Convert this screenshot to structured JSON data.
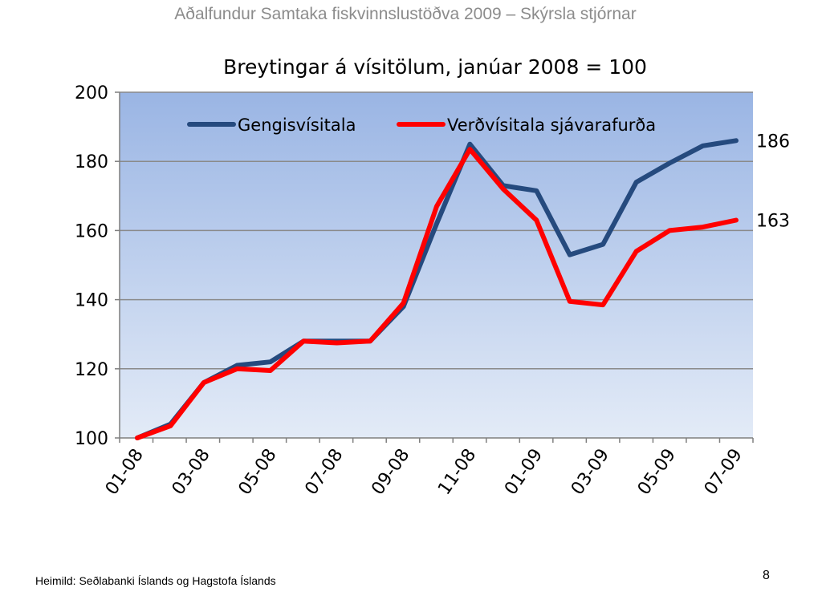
{
  "slide": {
    "header": "Aðalfundur Samtaka fiskvinnslustöðva 2009 – Skýrsla stjórnar",
    "source": "Heimild: Seðlabanki Íslands og  Hagstofa Íslands",
    "page_number": "8"
  },
  "chart_data": {
    "type": "line",
    "title": "Breytingar á vísitölum,  janúar 2008 = 100",
    "xlabel": "",
    "ylabel": "",
    "ylim": [
      100,
      200
    ],
    "yticks": [
      100,
      120,
      140,
      160,
      180,
      200
    ],
    "categories": [
      "01-08",
      "02-08",
      "03-08",
      "04-08",
      "05-08",
      "06-08",
      "07-08",
      "08-08",
      "09-08",
      "10-08",
      "11-08",
      "12-08",
      "01-09",
      "02-09",
      "03-09",
      "04-09",
      "05-09",
      "06-09",
      "07-09"
    ],
    "tick_labels": [
      "01-08",
      "03-08",
      "05-08",
      "07-08",
      "09-08",
      "11-08",
      "01-09",
      "03-09",
      "05-09",
      "07-09"
    ],
    "grid": true,
    "legend_position": "top",
    "series": [
      {
        "name": "Gengisvísitala",
        "color": "#254a7e",
        "values": [
          100,
          104,
          116,
          121,
          122,
          128,
          128,
          128,
          138,
          162,
          185,
          173,
          171.5,
          153,
          156,
          174,
          179.5,
          184.5,
          186
        ],
        "end_label": "186"
      },
      {
        "name": "Verðvísitala sjávarafurða",
        "color": "#ff0000",
        "values": [
          100,
          103.5,
          116,
          120,
          119.5,
          128,
          127.5,
          128,
          139,
          167,
          183.5,
          172,
          163,
          139.5,
          138.5,
          154,
          160,
          161,
          163
        ],
        "end_label": "163"
      }
    ]
  }
}
